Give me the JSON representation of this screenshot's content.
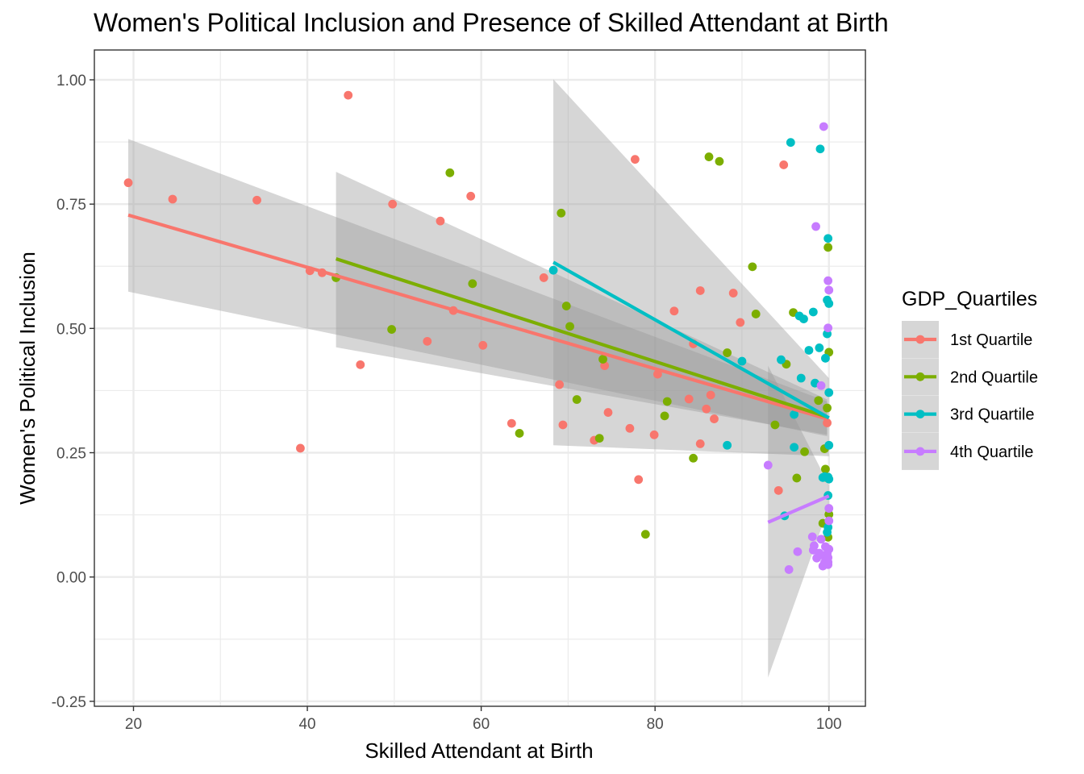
{
  "chart_data": {
    "type": "scatter",
    "title": "Women's Political Inclusion and Presence of Skilled Attendant at Birth",
    "xlabel": "Skilled Attendant at Birth",
    "ylabel": "Women's Political Inclusion",
    "xlim": [
      15.5,
      104.2
    ],
    "ylim": [
      -0.26,
      1.06
    ],
    "x_ticks": [
      "20",
      "40",
      "60",
      "80",
      "100"
    ],
    "y_ticks": [
      "-0.25",
      "0.00",
      "0.25",
      "0.50",
      "0.75",
      "1.00"
    ],
    "grid": true,
    "legend_position": "right",
    "legend_title": "GDP_Quartiles",
    "colors": {
      "1st Quartile": "#F8766D",
      "2nd Quartile": "#7CAE00",
      "3rd Quartile": "#00BFC4",
      "4th Quartile": "#C77CFF",
      "ribbon": "#999999"
    },
    "series": [
      {
        "name": "1st Quartile",
        "color": "#F8766D",
        "points": [
          [
            19.4,
            0.793
          ],
          [
            24.5,
            0.76
          ],
          [
            34.2,
            0.758
          ],
          [
            39.2,
            0.259
          ],
          [
            40.3,
            0.616
          ],
          [
            41.7,
            0.612
          ],
          [
            44.7,
            0.969
          ],
          [
            46.1,
            0.427
          ],
          [
            49.8,
            0.75
          ],
          [
            53.8,
            0.474
          ],
          [
            55.3,
            0.716
          ],
          [
            56.8,
            0.536
          ],
          [
            58.8,
            0.766
          ],
          [
            60.2,
            0.466
          ],
          [
            63.5,
            0.309
          ],
          [
            67.2,
            0.602
          ],
          [
            69.0,
            0.387
          ],
          [
            69.4,
            0.306
          ],
          [
            73.0,
            0.275
          ],
          [
            74.6,
            0.331
          ],
          [
            74.2,
            0.425
          ],
          [
            77.1,
            0.299
          ],
          [
            77.7,
            0.84
          ],
          [
            78.1,
            0.196
          ],
          [
            79.9,
            0.286
          ],
          [
            80.3,
            0.408
          ],
          [
            82.2,
            0.535
          ],
          [
            83.9,
            0.358
          ],
          [
            84.4,
            0.469
          ],
          [
            85.2,
            0.576
          ],
          [
            85.9,
            0.338
          ],
          [
            86.4,
            0.366
          ],
          [
            86.8,
            0.318
          ],
          [
            85.2,
            0.268
          ],
          [
            89.0,
            0.571
          ],
          [
            89.8,
            0.512
          ],
          [
            94.2,
            0.174
          ],
          [
            94.8,
            0.829
          ],
          [
            99.8,
            0.31
          ]
        ],
        "fit": {
          "x": [
            19.4,
            99.8
          ],
          "y": [
            0.728,
            0.318
          ],
          "ribbon_upper": [
            0.881,
            0.353
          ],
          "ribbon_lower": [
            0.574,
            0.283
          ]
        }
      },
      {
        "name": "2nd Quartile",
        "color": "#7CAE00",
        "points": [
          [
            43.3,
            0.602
          ],
          [
            49.7,
            0.498
          ],
          [
            56.4,
            0.813
          ],
          [
            59.0,
            0.59
          ],
          [
            64.4,
            0.289
          ],
          [
            69.2,
            0.732
          ],
          [
            69.8,
            0.545
          ],
          [
            70.2,
            0.504
          ],
          [
            71.0,
            0.357
          ],
          [
            73.6,
            0.279
          ],
          [
            74.0,
            0.438
          ],
          [
            78.9,
            0.086
          ],
          [
            81.1,
            0.324
          ],
          [
            81.4,
            0.353
          ],
          [
            84.4,
            0.239
          ],
          [
            86.2,
            0.845
          ],
          [
            87.4,
            0.836
          ],
          [
            88.3,
            0.451
          ],
          [
            91.2,
            0.624
          ],
          [
            91.6,
            0.529
          ],
          [
            93.8,
            0.306
          ],
          [
            95.1,
            0.428
          ],
          [
            95.9,
            0.532
          ],
          [
            96.3,
            0.199
          ],
          [
            97.2,
            0.252
          ],
          [
            98.8,
            0.355
          ],
          [
            99.3,
            0.108
          ],
          [
            99.5,
            0.258
          ],
          [
            99.6,
            0.217
          ],
          [
            99.8,
            0.34
          ],
          [
            99.9,
            0.08
          ],
          [
            99.9,
            0.663
          ],
          [
            100.0,
            0.452
          ],
          [
            99.7,
            0.2
          ],
          [
            100.0,
            0.126
          ]
        ],
        "fit": {
          "x": [
            43.3,
            99.8
          ],
          "y": [
            0.64,
            0.322
          ],
          "ribbon_upper": [
            0.815,
            0.357
          ],
          "ribbon_lower": [
            0.462,
            0.286
          ]
        }
      },
      {
        "name": "3rd Quartile",
        "color": "#00BFC4",
        "points": [
          [
            68.3,
            0.617
          ],
          [
            88.3,
            0.265
          ],
          [
            90.0,
            0.434
          ],
          [
            94.5,
            0.437
          ],
          [
            94.9,
            0.123
          ],
          [
            95.6,
            0.874
          ],
          [
            96.0,
            0.261
          ],
          [
            96.0,
            0.327
          ],
          [
            96.6,
            0.525
          ],
          [
            96.8,
            0.4
          ],
          [
            97.1,
            0.519
          ],
          [
            97.7,
            0.456
          ],
          [
            98.2,
            0.533
          ],
          [
            98.4,
            0.39
          ],
          [
            98.9,
            0.461
          ],
          [
            99.0,
            0.861
          ],
          [
            99.3,
            0.2
          ],
          [
            99.6,
            0.44
          ],
          [
            99.8,
            0.489
          ],
          [
            99.8,
            0.557
          ],
          [
            99.9,
            0.681
          ],
          [
            99.9,
            0.201
          ],
          [
            100.0,
            0.55
          ],
          [
            100.0,
            0.371
          ],
          [
            100.0,
            0.265
          ],
          [
            100.0,
            0.197
          ],
          [
            99.9,
            0.164
          ],
          [
            99.8,
            0.09
          ],
          [
            99.9,
            0.1
          ],
          [
            99.5,
            0.202
          ]
        ],
        "fit": {
          "x": [
            68.3,
            100.0
          ],
          "y": [
            0.633,
            0.32
          ],
          "ribbon_upper": [
            1.001,
            0.4
          ],
          "ribbon_lower": [
            0.265,
            0.243
          ]
        }
      },
      {
        "name": "4th Quartile",
        "color": "#C77CFF",
        "points": [
          [
            99.4,
            0.906
          ],
          [
            98.5,
            0.705
          ],
          [
            99.9,
            0.596
          ],
          [
            100.0,
            0.577
          ],
          [
            99.9,
            0.501
          ],
          [
            99.1,
            0.385
          ],
          [
            93.0,
            0.225
          ],
          [
            95.4,
            0.015
          ],
          [
            96.4,
            0.051
          ],
          [
            98.1,
            0.081
          ],
          [
            98.2,
            0.054
          ],
          [
            98.3,
            0.063
          ],
          [
            98.6,
            0.038
          ],
          [
            98.9,
            0.048
          ],
          [
            99.1,
            0.076
          ],
          [
            99.3,
            0.022
          ],
          [
            99.4,
            0.043
          ],
          [
            99.5,
            0.029
          ],
          [
            99.6,
            0.061
          ],
          [
            99.7,
            0.036
          ],
          [
            99.8,
            0.047
          ],
          [
            99.9,
            0.039
          ],
          [
            99.9,
            0.03
          ],
          [
            100.0,
            0.056
          ],
          [
            100.0,
            0.113
          ],
          [
            100.0,
            0.138
          ],
          [
            99.8,
            0.033
          ],
          [
            99.9,
            0.025
          ]
        ],
        "fit": {
          "x": [
            93.0,
            100.0
          ],
          "y": [
            0.11,
            0.163
          ],
          "ribbon_upper": [
            0.425,
            0.185
          ],
          "ribbon_lower": [
            -0.202,
            0.141
          ]
        }
      }
    ]
  }
}
